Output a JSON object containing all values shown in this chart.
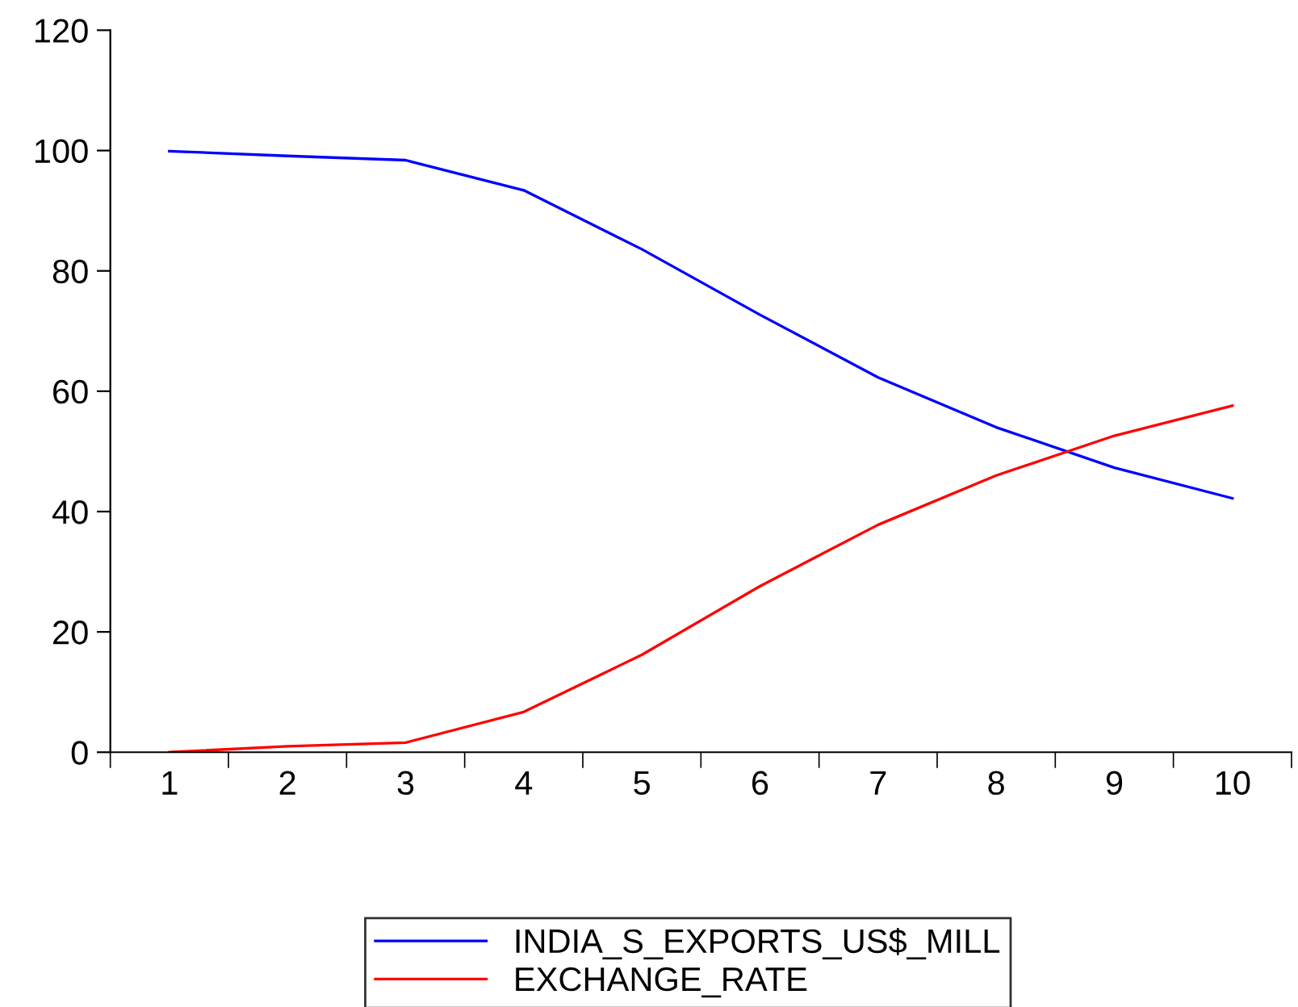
{
  "chart_data": {
    "type": "line",
    "categories": [
      "1",
      "2",
      "3",
      "4",
      "5",
      "6",
      "7",
      "8",
      "9",
      "10"
    ],
    "series": [
      {
        "name": "INDIA_S_EXPORTS_US$_MILL",
        "color": "#0000ff",
        "values": [
          99.9,
          99.1,
          98.4,
          93.4,
          83.6,
          72.7,
          62.3,
          54.0,
          47.3,
          42.2
        ]
      },
      {
        "name": "EXCHANGE_RATE",
        "color": "#ff0000",
        "values": [
          0.0,
          1.0,
          1.6,
          6.7,
          16.2,
          27.6,
          37.8,
          46.0,
          52.6,
          57.6
        ]
      }
    ],
    "ylim": [
      0,
      120
    ],
    "yticks": [
      0,
      20,
      40,
      60,
      80,
      100,
      120
    ],
    "grid": false,
    "legend": "bottom",
    "marker": "none",
    "line_style": "solid"
  }
}
